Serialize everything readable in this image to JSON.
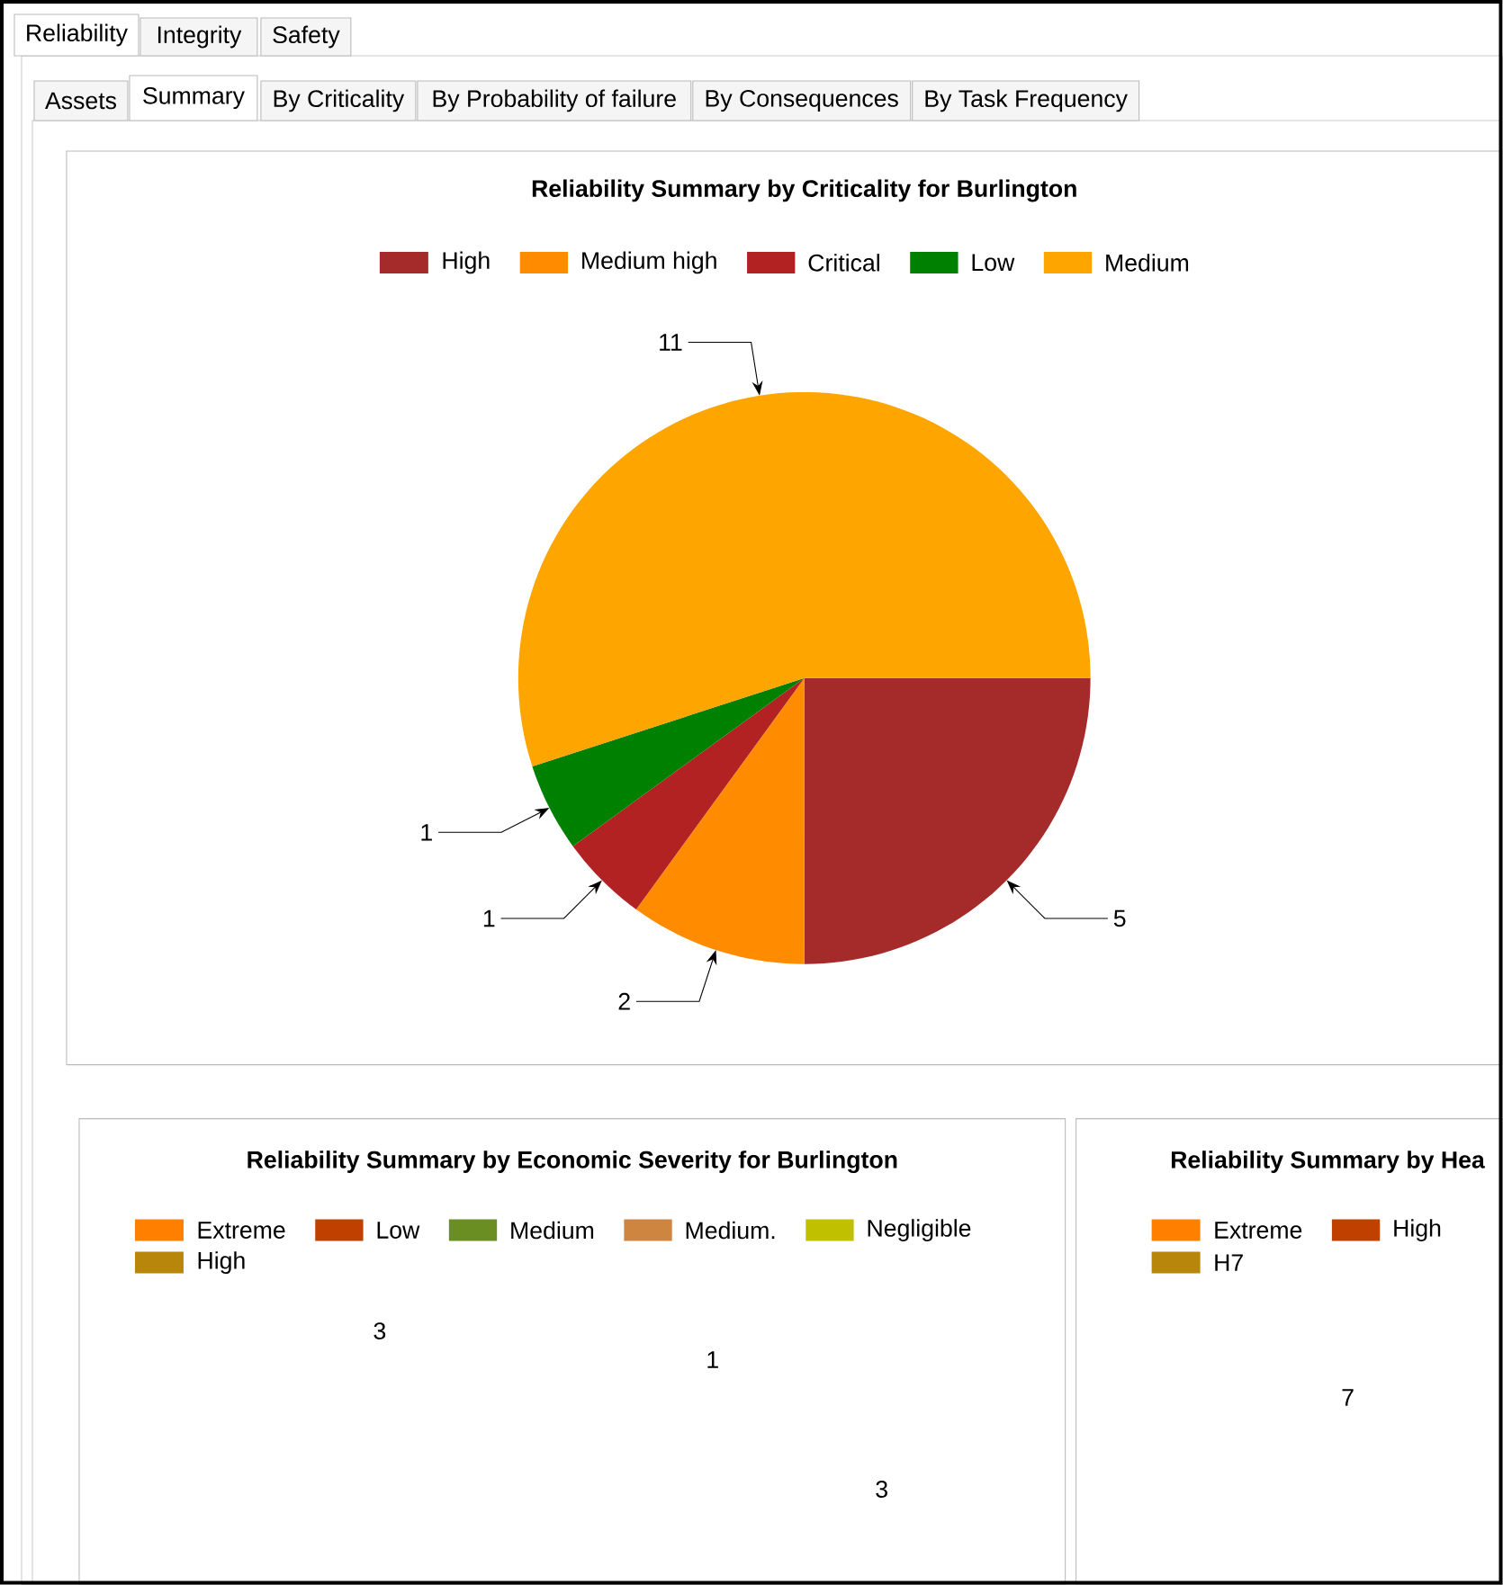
{
  "chart_data": [
    {
      "type": "other",
      "annotations": [
        "Reliability",
        "Integrity",
        "Safety",
        "Assets",
        "Summary",
        "By Criticality",
        "By Probability of failure",
        "By Consequences",
        "By Task Frequency"
      ]
    },
    {
      "type": "pie",
      "title": "Reliability Summary by Criticality for Burlington",
      "categories": [
        "High",
        "Medium high",
        "Critical",
        "Low",
        "Medium"
      ],
      "values": [
        5,
        2,
        1,
        1,
        11
      ],
      "colors": [
        "#a52a2a",
        "#ff8c00",
        "#b22222",
        "#008000",
        "#ffa500"
      ],
      "legend": "top",
      "data_labels": true
    },
    {
      "type": "other",
      "title": "Reliability Summary by Economic Severity for Burlington",
      "categories": [
        "Extreme",
        "Low",
        "Medium",
        "Medium.",
        "Negligible",
        "High"
      ],
      "colors": [
        "#ff8000",
        "#c04000",
        "#6b8e23",
        "#cd853f",
        "#c0c000",
        "#b8860b"
      ],
      "annotations": [
        "3",
        "1",
        "3"
      ]
    },
    {
      "type": "other",
      "title": "Reliability Summary by Hea",
      "categories": [
        "Extreme",
        "High",
        "H7"
      ],
      "colors": [
        "#ff8000",
        "#c04000",
        "#b8860b"
      ],
      "annotations": [
        "7"
      ]
    }
  ]
}
